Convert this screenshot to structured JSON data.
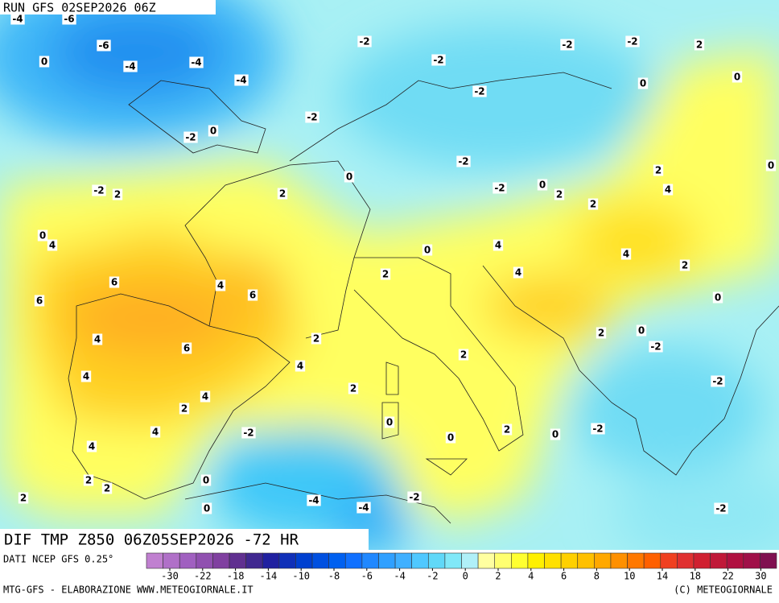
{
  "header": {
    "run": "RUN GFS 02SEP2026 06Z"
  },
  "map": {
    "title": "DIF TMP Z850 06Z05SEP2026 -72 HR",
    "labels": [
      -4,
      -6,
      -6,
      0,
      -4,
      -4,
      -4,
      -2,
      -2,
      -2,
      -2,
      2,
      0,
      0,
      -2,
      -2,
      0,
      -2,
      0,
      -2,
      -2,
      2,
      0,
      -2,
      2,
      2,
      0,
      2,
      2,
      4,
      0,
      4,
      4,
      0,
      4,
      2,
      2,
      4,
      6,
      4,
      6,
      6,
      0,
      4,
      6,
      2,
      2,
      0,
      -2,
      2,
      4,
      4,
      2,
      4,
      2,
      -2,
      0,
      2,
      4,
      -2,
      -2,
      0,
      0,
      4,
      2,
      2,
      0,
      -2,
      2,
      -4,
      -4,
      0,
      -2
    ]
  },
  "legend": {
    "colors": [
      "#c080d0",
      "#b070c8",
      "#a060c0",
      "#9050b0",
      "#8040a0",
      "#603090",
      "#402890",
      "#2020a0",
      "#1030b8",
      "#0040d0",
      "#0050e0",
      "#0060f0",
      "#1070ff",
      "#2088ff",
      "#30a0ff",
      "#40b0ff",
      "#50c8ff",
      "#60d8f8",
      "#80e8f8",
      "#b0f0f8",
      "#ffffa0",
      "#ffff70",
      "#ffff30",
      "#fff000",
      "#ffe000",
      "#ffd000",
      "#ffc000",
      "#ffa800",
      "#ff9000",
      "#ff7800",
      "#ff6000",
      "#f04020",
      "#e03030",
      "#d02030",
      "#c01838",
      "#b01040",
      "#a01048",
      "#801050"
    ],
    "ticks": [
      -30,
      -22,
      -18,
      -14,
      -10,
      -8,
      -6,
      -4,
      -2,
      0,
      2,
      4,
      6,
      8,
      10,
      14,
      18,
      22,
      30
    ]
  },
  "footer": {
    "source": "DATI NCEP GFS 0.25°",
    "credit": "MTG-GFS - ELABORAZIONE WWW.METEOGIORNALE.IT",
    "copyright": "(C) METEOGIORNALE"
  }
}
